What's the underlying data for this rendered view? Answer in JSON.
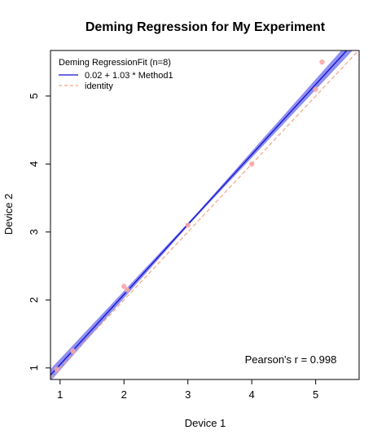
{
  "chart_data": {
    "type": "scatter",
    "title": "Deming Regression for  My Experiment",
    "xlabel": "Device 1",
    "ylabel": "Device 2",
    "xlim": [
      0.85,
      5.68
    ],
    "ylim": [
      0.83,
      5.67
    ],
    "xticks": [
      "1",
      "2",
      "3",
      "4",
      "5"
    ],
    "yticks": [
      "1",
      "2",
      "3",
      "4",
      "5"
    ],
    "grid": false,
    "legend": {
      "position": "top-left",
      "title": "Deming RegressionFit (n=8)",
      "entries": [
        {
          "label": "0.02 + 1.03 * Method1",
          "color": "#1010d0",
          "style": "solid"
        },
        {
          "label": "identity",
          "color": "#f4a582",
          "style": "dashed"
        }
      ]
    },
    "regression": {
      "intercept": 0.02,
      "slope": 1.03,
      "color": "#1010d0",
      "band_color": "#7b7bf0"
    },
    "identity_color": "#f4a582",
    "points": {
      "color": "#f7a8a8",
      "x": [
        0.95,
        1.2,
        2.0,
        2.05,
        3.0,
        4.0,
        5.0,
        5.1
      ],
      "y": [
        0.98,
        1.25,
        2.2,
        2.15,
        3.1,
        4.0,
        5.1,
        5.5
      ]
    },
    "annotation": "Pearson's r = 0.998"
  }
}
